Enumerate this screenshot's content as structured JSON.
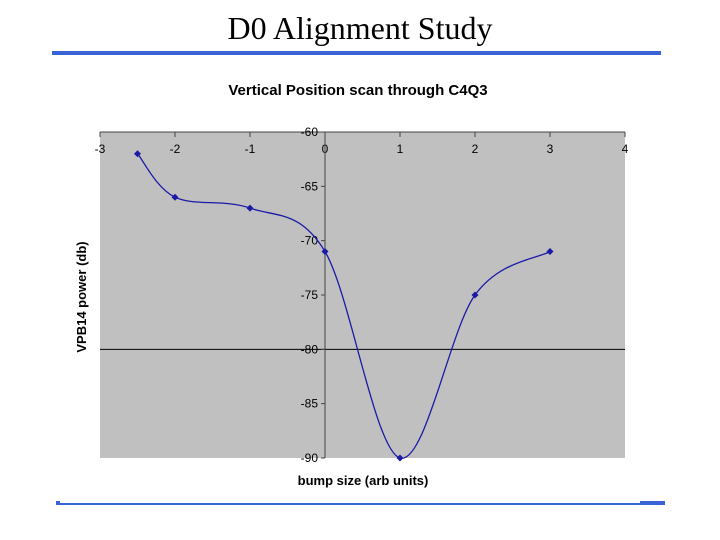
{
  "slide": {
    "title": "D0 Alignment Study",
    "accent_color": "#3a63d8"
  },
  "chart_data": {
    "type": "line",
    "title": "Vertical Position scan through C4Q3",
    "xlabel": "bump size (arb units)",
    "ylabel": "VPB14 power (db)",
    "xlim": [
      -3,
      4
    ],
    "ylim": [
      -90,
      -60
    ],
    "x_ticks": [
      "-3",
      "-2",
      "-1",
      "0",
      "1",
      "2",
      "3",
      "4"
    ],
    "y_ticks": [
      "-60",
      "-65",
      "-70",
      "-75",
      "-80",
      "-85",
      "-90"
    ],
    "reference_line_y": -80,
    "plot_background": "#c0c0c0",
    "series": [
      {
        "color": "#1a1aa6",
        "smooth": true,
        "x": [
          -2.5,
          -2,
          -1,
          0,
          1,
          2,
          3
        ],
        "y": [
          -62,
          -66,
          -67,
          -71,
          -90,
          -75,
          -71
        ]
      }
    ]
  }
}
